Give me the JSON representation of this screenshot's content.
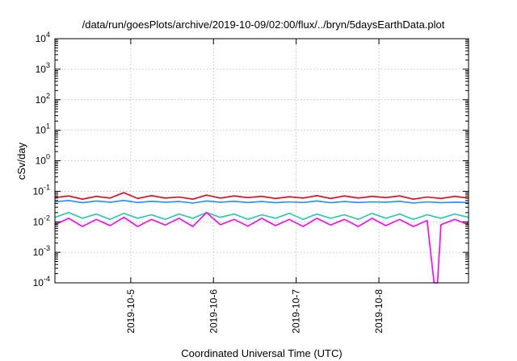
{
  "chart_data": {
    "type": "line",
    "title": "/data/run/goesPlots/archive/2019-10-09/02:00/flux/../bryn/5daysEarthData.plot",
    "xlabel": "Coordinated Universal Time (UTC)",
    "ylabel": "cSv/day",
    "y_scale": "log",
    "ylim": [
      0.0001,
      10000
    ],
    "xlim": [
      "2019-10-04T02:00",
      "2019-10-09T02:00"
    ],
    "grid": true,
    "legend": "none",
    "y_ticks": [
      {
        "base": "10",
        "exp": "-4",
        "value": 0.0001
      },
      {
        "base": "10",
        "exp": "-3",
        "value": 0.001
      },
      {
        "base": "10",
        "exp": "-2",
        "value": 0.01
      },
      {
        "base": "10",
        "exp": "-1",
        "value": 0.1
      },
      {
        "base": "10",
        "exp": "0",
        "value": 1
      },
      {
        "base": "10",
        "exp": "1",
        "value": 10
      },
      {
        "base": "10",
        "exp": "2",
        "value": 100
      },
      {
        "base": "10",
        "exp": "3",
        "value": 1000
      },
      {
        "base": "10",
        "exp": "4",
        "value": 10000
      }
    ],
    "x_ticks": [
      {
        "label": "2019-10-5",
        "value": "2019-10-05T00:00"
      },
      {
        "label": "2019-10-6",
        "value": "2019-10-06T00:00"
      },
      {
        "label": "2019-10-7",
        "value": "2019-10-07T00:00"
      },
      {
        "label": "2019-10-8",
        "value": "2019-10-08T00:00"
      }
    ],
    "series": [
      {
        "color": "#e8001a",
        "values": [
          [
            "2019-10-04T02:00",
            0.062
          ],
          [
            "2019-10-04T06:00",
            0.07
          ],
          [
            "2019-10-04T10:00",
            0.055
          ],
          [
            "2019-10-04T14:00",
            0.068
          ],
          [
            "2019-10-04T18:00",
            0.06
          ],
          [
            "2019-10-04T22:00",
            0.09
          ],
          [
            "2019-10-05T02:00",
            0.058
          ],
          [
            "2019-10-05T06:00",
            0.072
          ],
          [
            "2019-10-05T10:00",
            0.06
          ],
          [
            "2019-10-05T14:00",
            0.065
          ],
          [
            "2019-10-05T18:00",
            0.055
          ],
          [
            "2019-10-05T22:00",
            0.075
          ],
          [
            "2019-10-06T02:00",
            0.06
          ],
          [
            "2019-10-06T06:00",
            0.07
          ],
          [
            "2019-10-06T10:00",
            0.062
          ],
          [
            "2019-10-06T14:00",
            0.068
          ],
          [
            "2019-10-06T18:00",
            0.058
          ],
          [
            "2019-10-06T22:00",
            0.066
          ],
          [
            "2019-10-07T02:00",
            0.06
          ],
          [
            "2019-10-07T06:00",
            0.072
          ],
          [
            "2019-10-07T10:00",
            0.058
          ],
          [
            "2019-10-07T14:00",
            0.07
          ],
          [
            "2019-10-07T18:00",
            0.06
          ],
          [
            "2019-10-07T22:00",
            0.068
          ],
          [
            "2019-10-08T02:00",
            0.062
          ],
          [
            "2019-10-08T06:00",
            0.07
          ],
          [
            "2019-10-08T10:00",
            0.055
          ],
          [
            "2019-10-08T14:00",
            0.065
          ],
          [
            "2019-10-08T18:00",
            0.058
          ],
          [
            "2019-10-08T22:00",
            0.068
          ],
          [
            "2019-10-09T02:00",
            0.06
          ]
        ]
      },
      {
        "color": "#1e90ff",
        "values": [
          [
            "2019-10-04T02:00",
            0.045
          ],
          [
            "2019-10-04T06:00",
            0.05
          ],
          [
            "2019-10-04T10:00",
            0.042
          ],
          [
            "2019-10-04T14:00",
            0.048
          ],
          [
            "2019-10-04T18:00",
            0.044
          ],
          [
            "2019-10-04T22:00",
            0.05
          ],
          [
            "2019-10-05T02:00",
            0.043
          ],
          [
            "2019-10-05T06:00",
            0.047
          ],
          [
            "2019-10-05T10:00",
            0.044
          ],
          [
            "2019-10-05T14:00",
            0.046
          ],
          [
            "2019-10-05T18:00",
            0.041
          ],
          [
            "2019-10-05T22:00",
            0.048
          ],
          [
            "2019-10-06T02:00",
            0.044
          ],
          [
            "2019-10-06T06:00",
            0.047
          ],
          [
            "2019-10-06T10:00",
            0.043
          ],
          [
            "2019-10-06T14:00",
            0.046
          ],
          [
            "2019-10-06T18:00",
            0.042
          ],
          [
            "2019-10-06T22:00",
            0.045
          ],
          [
            "2019-10-07T02:00",
            0.043
          ],
          [
            "2019-10-07T06:00",
            0.048
          ],
          [
            "2019-10-07T10:00",
            0.042
          ],
          [
            "2019-10-07T14:00",
            0.046
          ],
          [
            "2019-10-07T18:00",
            0.043
          ],
          [
            "2019-10-07T22:00",
            0.045
          ],
          [
            "2019-10-08T02:00",
            0.044
          ],
          [
            "2019-10-08T06:00",
            0.047
          ],
          [
            "2019-10-08T10:00",
            0.041
          ],
          [
            "2019-10-08T14:00",
            0.045
          ],
          [
            "2019-10-08T18:00",
            0.042
          ],
          [
            "2019-10-08T22:00",
            0.044
          ],
          [
            "2019-10-09T02:00",
            0.043
          ]
        ]
      },
      {
        "color": "#20c8b0",
        "values": [
          [
            "2019-10-04T02:00",
            0.014
          ],
          [
            "2019-10-04T06:00",
            0.02
          ],
          [
            "2019-10-04T10:00",
            0.013
          ],
          [
            "2019-10-04T14:00",
            0.018
          ],
          [
            "2019-10-04T18:00",
            0.012
          ],
          [
            "2019-10-04T22:00",
            0.019
          ],
          [
            "2019-10-05T02:00",
            0.013
          ],
          [
            "2019-10-05T06:00",
            0.017
          ],
          [
            "2019-10-05T10:00",
            0.012
          ],
          [
            "2019-10-05T14:00",
            0.018
          ],
          [
            "2019-10-05T18:00",
            0.013
          ],
          [
            "2019-10-05T22:00",
            0.02
          ],
          [
            "2019-10-06T02:00",
            0.014
          ],
          [
            "2019-10-06T06:00",
            0.018
          ],
          [
            "2019-10-06T10:00",
            0.012
          ],
          [
            "2019-10-06T14:00",
            0.017
          ],
          [
            "2019-10-06T18:00",
            0.013
          ],
          [
            "2019-10-06T22:00",
            0.019
          ],
          [
            "2019-10-07T02:00",
            0.012
          ],
          [
            "2019-10-07T06:00",
            0.018
          ],
          [
            "2019-10-07T10:00",
            0.013
          ],
          [
            "2019-10-07T14:00",
            0.017
          ],
          [
            "2019-10-07T18:00",
            0.012
          ],
          [
            "2019-10-07T22:00",
            0.019
          ],
          [
            "2019-10-08T02:00",
            0.013
          ],
          [
            "2019-10-08T06:00",
            0.018
          ],
          [
            "2019-10-08T10:00",
            0.012
          ],
          [
            "2019-10-08T14:00",
            0.017
          ],
          [
            "2019-10-08T18:00",
            0.013
          ],
          [
            "2019-10-08T22:00",
            0.018
          ],
          [
            "2019-10-09T02:00",
            0.014
          ]
        ]
      },
      {
        "color": "#ff00ff",
        "values": [
          [
            "2019-10-04T02:00",
            0.008
          ],
          [
            "2019-10-04T06:00",
            0.013
          ],
          [
            "2019-10-04T10:00",
            0.007
          ],
          [
            "2019-10-04T14:00",
            0.012
          ],
          [
            "2019-10-04T18:00",
            0.0075
          ],
          [
            "2019-10-04T22:00",
            0.014
          ],
          [
            "2019-10-05T02:00",
            0.007
          ],
          [
            "2019-10-05T06:00",
            0.012
          ],
          [
            "2019-10-05T10:00",
            0.0078
          ],
          [
            "2019-10-05T14:00",
            0.013
          ],
          [
            "2019-10-05T18:00",
            0.007
          ],
          [
            "2019-10-05T22:00",
            0.02
          ],
          [
            "2019-10-06T02:00",
            0.008
          ],
          [
            "2019-10-06T06:00",
            0.012
          ],
          [
            "2019-10-06T10:00",
            0.0072
          ],
          [
            "2019-10-06T14:00",
            0.013
          ],
          [
            "2019-10-06T18:00",
            0.0075
          ],
          [
            "2019-10-06T22:00",
            0.012
          ],
          [
            "2019-10-07T02:00",
            0.007
          ],
          [
            "2019-10-07T06:00",
            0.013
          ],
          [
            "2019-10-07T10:00",
            0.0078
          ],
          [
            "2019-10-07T14:00",
            0.012
          ],
          [
            "2019-10-07T18:00",
            0.007
          ],
          [
            "2019-10-07T22:00",
            0.013
          ],
          [
            "2019-10-08T02:00",
            0.0075
          ],
          [
            "2019-10-08T06:00",
            0.012
          ],
          [
            "2019-10-08T10:00",
            0.007
          ],
          [
            "2019-10-08T14:00",
            0.011
          ],
          [
            "2019-10-08T16:00",
            0.0001
          ],
          [
            "2019-10-08T17:00",
            0.0001
          ],
          [
            "2019-10-08T18:00",
            0.008
          ],
          [
            "2019-10-08T22:00",
            0.012
          ],
          [
            "2019-10-09T02:00",
            0.008
          ]
        ]
      }
    ]
  }
}
